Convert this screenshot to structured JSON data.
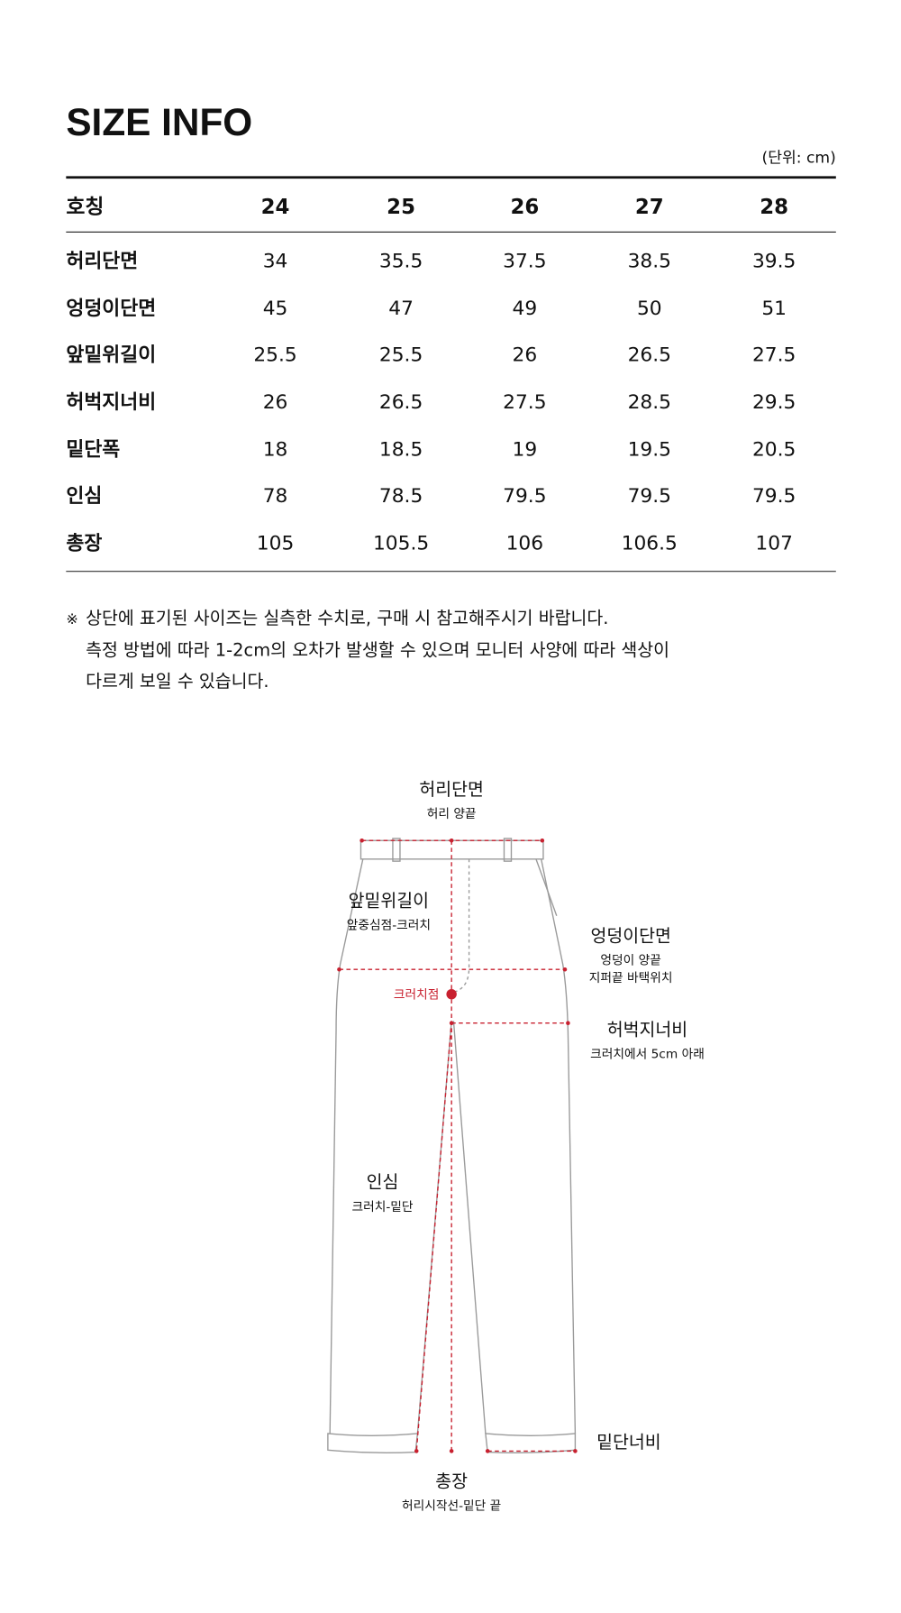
{
  "header": {
    "title": "SIZE INFO",
    "unit": "(단위: cm)"
  },
  "table": {
    "header": [
      "호칭",
      "24",
      "25",
      "26",
      "27",
      "28"
    ],
    "rows": [
      [
        "허리단면",
        "34",
        "35.5",
        "37.5",
        "38.5",
        "39.5"
      ],
      [
        "엉덩이단면",
        "45",
        "47",
        "49",
        "50",
        "51"
      ],
      [
        "앞밑위길이",
        "25.5",
        "25.5",
        "26",
        "26.5",
        "27.5"
      ],
      [
        "허벅지너비",
        "26",
        "26.5",
        "27.5",
        "28.5",
        "29.5"
      ],
      [
        "밑단폭",
        "18",
        "18.5",
        "19",
        "19.5",
        "20.5"
      ],
      [
        "인심",
        "78",
        "78.5",
        "79.5",
        "79.5",
        "79.5"
      ],
      [
        "총장",
        "105",
        "105.5",
        "106",
        "106.5",
        "107"
      ]
    ]
  },
  "note": {
    "mark": "※",
    "lines": [
      "상단에 표기된 사이즈는 실측한 수치로, 구매 시 참고해주시기 바랍니다.",
      "측정 방법에 따라 1-2cm의 오차가 발생할 수 있으며 모니터 사양에 따라 색상이",
      "다르게 보일 수 있습니다."
    ]
  },
  "diagram": {
    "labels": [
      {
        "title": "허리단면",
        "sub": [
          "허리 양끝"
        ]
      },
      {
        "title": "앞밑위길이",
        "sub": [
          "앞중심점-크러치"
        ]
      },
      {
        "title": "엉덩이단면",
        "sub": [
          "엉덩이 양끝",
          "지퍼끝 바택위치"
        ]
      },
      {
        "title": "허벅지너비",
        "sub": [
          "크러치에서 5cm 아래"
        ]
      },
      {
        "title": "인심",
        "sub": [
          "크러치-밑단"
        ]
      },
      {
        "title": "밑단너비",
        "sub": []
      },
      {
        "title": "총장",
        "sub": [
          "허리시작선-밑단 끝"
        ]
      }
    ],
    "crotch": "크러치점"
  }
}
